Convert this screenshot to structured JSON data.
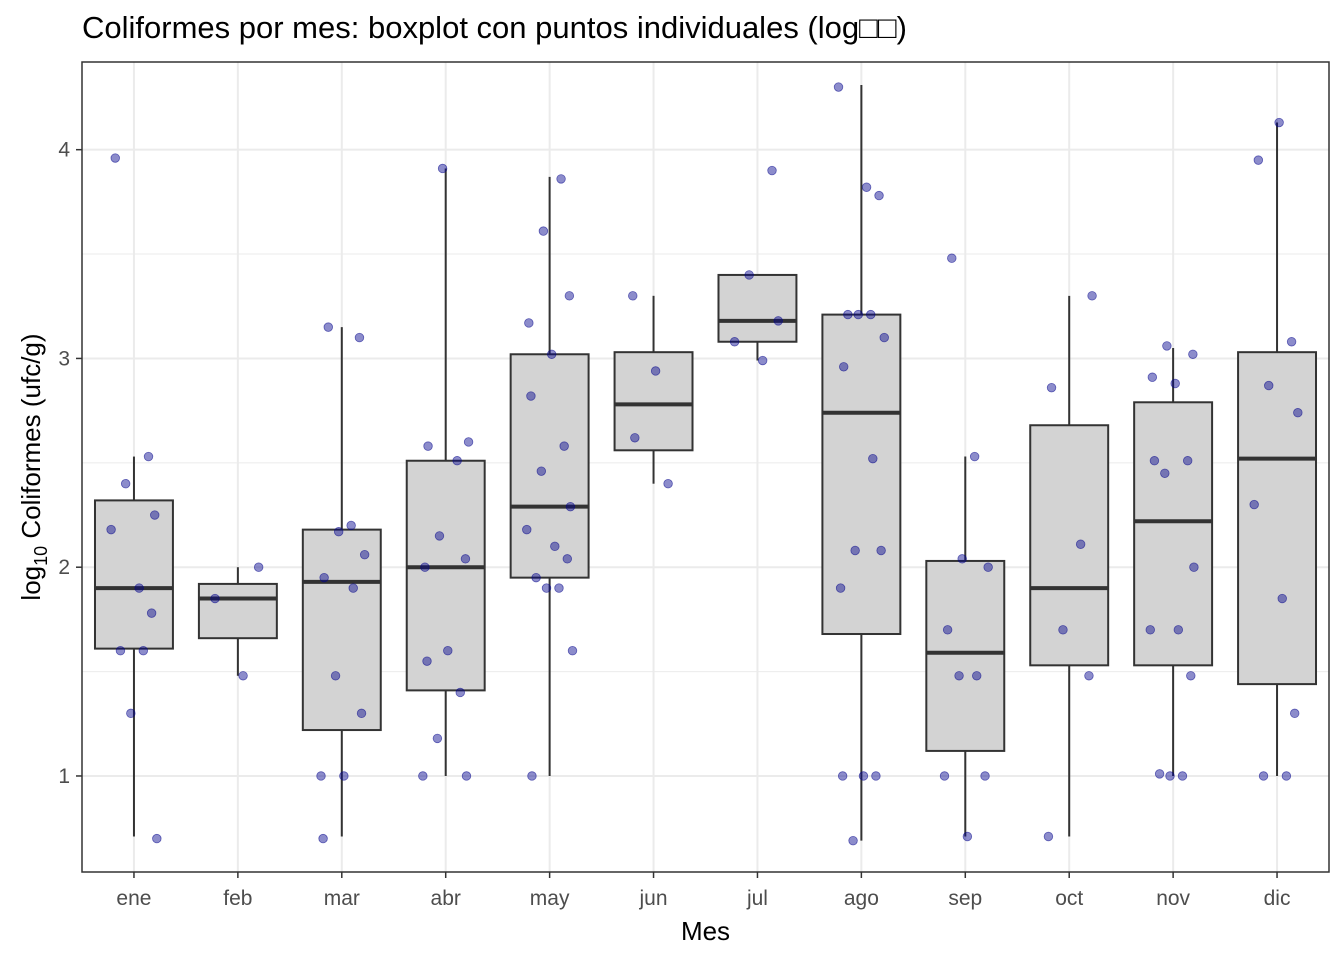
{
  "chart_data": {
    "type": "boxplot",
    "title": "Coliformes por mes: boxplot con puntos individuales (log□□)",
    "xlabel": "Mes",
    "ylabel_prefix": "log",
    "ylabel_subscript": "10",
    "ylabel_rest": " Coliformes (ufc/g)",
    "ylim": [
      0.54,
      4.42
    ],
    "yticks": [
      1,
      2,
      3,
      4
    ],
    "ytick_labels": [
      "1",
      "2",
      "3",
      "4"
    ],
    "grid": true,
    "categories": [
      "ene",
      "feb",
      "mar",
      "abr",
      "may",
      "jun",
      "jul",
      "ago",
      "sep",
      "oct",
      "nov",
      "dic"
    ],
    "colors": {
      "box_fill": "#d3d3d3",
      "box_stroke": "#333333",
      "point_fill": "#00008b",
      "point_alpha": 0.45,
      "grid": "#ebebeb",
      "panel_border": "#333333"
    },
    "boxes": [
      {
        "month": "ene",
        "lower": 0.71,
        "q1": 1.61,
        "median": 1.9,
        "q3": 2.32,
        "upper": 2.53
      },
      {
        "month": "feb",
        "lower": 1.48,
        "q1": 1.66,
        "median": 1.85,
        "q3": 1.92,
        "upper": 2.0
      },
      {
        "month": "mar",
        "lower": 0.71,
        "q1": 1.22,
        "median": 1.93,
        "q3": 2.18,
        "upper": 3.15
      },
      {
        "month": "abr",
        "lower": 1.0,
        "q1": 1.41,
        "median": 2.0,
        "q3": 2.51,
        "upper": 3.91
      },
      {
        "month": "may",
        "lower": 1.0,
        "q1": 1.95,
        "median": 2.29,
        "q3": 3.02,
        "upper": 3.87
      },
      {
        "month": "jun",
        "lower": 2.4,
        "q1": 2.56,
        "median": 2.78,
        "q3": 3.03,
        "upper": 3.3
      },
      {
        "month": "jul",
        "lower": 2.99,
        "q1": 3.08,
        "median": 3.18,
        "q3": 3.4,
        "upper": 3.4
      },
      {
        "month": "ago",
        "lower": 0.69,
        "q1": 1.68,
        "median": 2.74,
        "q3": 3.21,
        "upper": 4.31
      },
      {
        "month": "sep",
        "lower": 0.71,
        "q1": 1.12,
        "median": 1.59,
        "q3": 2.03,
        "upper": 2.53
      },
      {
        "month": "oct",
        "lower": 0.71,
        "q1": 1.53,
        "median": 1.9,
        "q3": 2.68,
        "upper": 3.3
      },
      {
        "month": "nov",
        "lower": 1.0,
        "q1": 1.53,
        "median": 2.22,
        "q3": 2.79,
        "upper": 3.05
      },
      {
        "month": "dic",
        "lower": 1.0,
        "q1": 1.44,
        "median": 2.52,
        "q3": 3.03,
        "upper": 4.13
      }
    ],
    "points": [
      [
        3.96,
        2.53,
        2.4,
        2.25,
        2.18,
        1.9,
        1.78,
        1.6,
        1.6,
        1.3,
        0.7
      ],
      [
        2.0,
        1.85,
        1.48
      ],
      [
        3.1,
        3.15,
        2.2,
        2.17,
        2.06,
        1.95,
        1.9,
        1.48,
        1.3,
        1.0,
        1.0,
        0.7
      ],
      [
        3.91,
        2.6,
        2.58,
        2.51,
        2.15,
        2.04,
        2.0,
        1.6,
        1.55,
        1.4,
        1.18,
        1.0,
        1.0
      ],
      [
        3.86,
        3.61,
        3.3,
        3.17,
        3.02,
        2.82,
        2.58,
        2.46,
        2.29,
        2.18,
        2.1,
        2.04,
        1.95,
        1.9,
        1.9,
        1.6,
        1.0
      ],
      [
        3.3,
        2.94,
        2.62,
        2.4
      ],
      [
        3.9,
        3.4,
        3.18,
        3.08,
        2.99
      ],
      [
        4.3,
        3.82,
        3.78,
        3.21,
        3.21,
        3.21,
        3.1,
        2.96,
        2.52,
        2.08,
        2.08,
        1.9,
        1.0,
        1.0,
        1.0,
        0.69
      ],
      [
        3.48,
        2.53,
        2.04,
        2.0,
        1.7,
        1.48,
        1.48,
        1.0,
        1.0,
        0.71
      ],
      [
        3.3,
        2.86,
        2.11,
        1.7,
        1.48,
        0.71
      ],
      [
        3.06,
        3.02,
        2.91,
        2.88,
        2.51,
        2.51,
        2.45,
        2.0,
        1.7,
        1.7,
        1.48,
        1.01,
        1.0,
        1.0
      ],
      [
        4.13,
        3.95,
        3.08,
        2.87,
        2.74,
        2.3,
        1.85,
        1.3,
        1.0,
        1.0
      ]
    ]
  }
}
